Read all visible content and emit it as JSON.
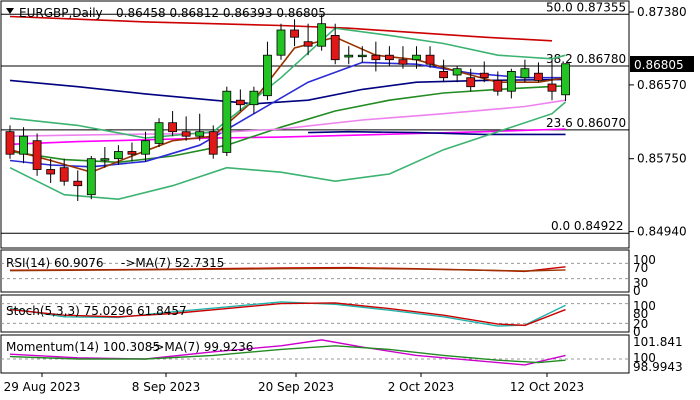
{
  "header": {
    "symbol": "EURGBP,Daily",
    "ohlc": "0.86458 0.86812 0.86393 0.86805"
  },
  "price_badge": "0.86805",
  "chart_data": {
    "type": "candlestick",
    "timeframe": "Daily",
    "x_tick_labels": [
      "29 Aug 2023",
      "8 Sep 2023",
      "20 Sep 2023",
      "2 Oct 2023",
      "12 Oct 2023"
    ],
    "main": {
      "ylim": [
        0.8478,
        0.8748
      ],
      "y_ticks": [
        "0.87380",
        "0.86570",
        "0.85750",
        "0.84940"
      ],
      "fib_levels": [
        {
          "label": "50.0 0.87355",
          "value": 0.87355
        },
        {
          "label": "38.2 0.86780",
          "value": 0.8678
        },
        {
          "label": "23.6 0.86070",
          "value": 0.8607
        },
        {
          "label": "0.0 0.84922",
          "value": 0.84922
        }
      ],
      "candles": [
        {
          "o": 0.8605,
          "h": 0.8612,
          "l": 0.8575,
          "c": 0.858
        },
        {
          "o": 0.858,
          "h": 0.861,
          "l": 0.857,
          "c": 0.86
        },
        {
          "o": 0.8595,
          "h": 0.8603,
          "l": 0.8556,
          "c": 0.8563
        },
        {
          "o": 0.8563,
          "h": 0.8575,
          "l": 0.8548,
          "c": 0.8558
        },
        {
          "o": 0.8565,
          "h": 0.8575,
          "l": 0.8545,
          "c": 0.855
        },
        {
          "o": 0.855,
          "h": 0.8562,
          "l": 0.8528,
          "c": 0.8545
        },
        {
          "o": 0.8535,
          "h": 0.8578,
          "l": 0.853,
          "c": 0.8575
        },
        {
          "o": 0.8575,
          "h": 0.8588,
          "l": 0.8565,
          "c": 0.8575
        },
        {
          "o": 0.8575,
          "h": 0.859,
          "l": 0.8568,
          "c": 0.8583
        },
        {
          "o": 0.8583,
          "h": 0.8593,
          "l": 0.8572,
          "c": 0.858
        },
        {
          "o": 0.858,
          "h": 0.8605,
          "l": 0.8572,
          "c": 0.8595
        },
        {
          "o": 0.8592,
          "h": 0.862,
          "l": 0.8588,
          "c": 0.8615
        },
        {
          "o": 0.8615,
          "h": 0.8628,
          "l": 0.86,
          "c": 0.8605
        },
        {
          "o": 0.8605,
          "h": 0.8622,
          "l": 0.8595,
          "c": 0.86
        },
        {
          "o": 0.86,
          "h": 0.8625,
          "l": 0.8595,
          "c": 0.8605
        },
        {
          "o": 0.8605,
          "h": 0.8612,
          "l": 0.8575,
          "c": 0.858
        },
        {
          "o": 0.8582,
          "h": 0.8655,
          "l": 0.8578,
          "c": 0.865
        },
        {
          "o": 0.864,
          "h": 0.8652,
          "l": 0.8628,
          "c": 0.8635
        },
        {
          "o": 0.8635,
          "h": 0.8655,
          "l": 0.8625,
          "c": 0.865
        },
        {
          "o": 0.8645,
          "h": 0.8705,
          "l": 0.864,
          "c": 0.869
        },
        {
          "o": 0.869,
          "h": 0.8725,
          "l": 0.8685,
          "c": 0.8718
        },
        {
          "o": 0.8718,
          "h": 0.873,
          "l": 0.87,
          "c": 0.871
        },
        {
          "o": 0.8705,
          "h": 0.8725,
          "l": 0.869,
          "c": 0.87
        },
        {
          "o": 0.87,
          "h": 0.8735,
          "l": 0.8695,
          "c": 0.8725
        },
        {
          "o": 0.8712,
          "h": 0.8725,
          "l": 0.868,
          "c": 0.8685
        },
        {
          "o": 0.8688,
          "h": 0.87,
          "l": 0.868,
          "c": 0.869
        },
        {
          "o": 0.869,
          "h": 0.87,
          "l": 0.8682,
          "c": 0.869
        },
        {
          "o": 0.869,
          "h": 0.8705,
          "l": 0.8672,
          "c": 0.8685
        },
        {
          "o": 0.869,
          "h": 0.87,
          "l": 0.8678,
          "c": 0.8685
        },
        {
          "o": 0.8685,
          "h": 0.87,
          "l": 0.8675,
          "c": 0.868
        },
        {
          "o": 0.8685,
          "h": 0.87,
          "l": 0.8675,
          "c": 0.869
        },
        {
          "o": 0.869,
          "h": 0.87,
          "l": 0.8676,
          "c": 0.868
        },
        {
          "o": 0.8672,
          "h": 0.8685,
          "l": 0.866,
          "c": 0.8665
        },
        {
          "o": 0.8668,
          "h": 0.8678,
          "l": 0.866,
          "c": 0.8675
        },
        {
          "o": 0.8665,
          "h": 0.8675,
          "l": 0.865,
          "c": 0.8655
        },
        {
          "o": 0.867,
          "h": 0.8683,
          "l": 0.866,
          "c": 0.8665
        },
        {
          "o": 0.8662,
          "h": 0.8672,
          "l": 0.8645,
          "c": 0.865
        },
        {
          "o": 0.865,
          "h": 0.8675,
          "l": 0.8642,
          "c": 0.8672
        },
        {
          "o": 0.8665,
          "h": 0.8685,
          "l": 0.866,
          "c": 0.8675
        },
        {
          "o": 0.867,
          "h": 0.8682,
          "l": 0.866,
          "c": 0.8662
        },
        {
          "o": 0.8658,
          "h": 0.8685,
          "l": 0.864,
          "c": 0.865
        },
        {
          "o": 0.8646,
          "h": 0.8681,
          "l": 0.8639,
          "c": 0.86805
        }
      ],
      "lines": [
        {
          "color": "#cc0000",
          "points": [
            [
              0,
              0.8733
            ],
            [
              5,
              0.873
            ],
            [
              10,
              0.8727
            ],
            [
              15,
              0.8725
            ],
            [
              20,
              0.8723
            ],
            [
              25,
              0.872
            ],
            [
              30,
              0.8715
            ],
            [
              35,
              0.871
            ],
            [
              40,
              0.8706
            ]
          ]
        },
        {
          "color": "#000080",
          "points": [
            [
              0,
              0.8662
            ],
            [
              5,
              0.8655
            ],
            [
              10,
              0.8647
            ],
            [
              15,
              0.864
            ],
            [
              18,
              0.8636
            ],
            [
              22,
              0.864
            ],
            [
              26,
              0.8652
            ],
            [
              30,
              0.866
            ],
            [
              35,
              0.8662
            ],
            [
              41,
              0.8663
            ]
          ]
        },
        {
          "color": "#ff00ff",
          "points": [
            [
              0,
              0.8591
            ],
            [
              5,
              0.8594
            ],
            [
              10,
              0.8596
            ],
            [
              15,
              0.8598
            ],
            [
              20,
              0.8599
            ],
            [
              25,
              0.8601
            ],
            [
              30,
              0.8603
            ],
            [
              35,
              0.8605
            ],
            [
              41,
              0.8608
            ]
          ]
        },
        {
          "color": "#000080",
          "points": [
            [
              22,
              0.8604
            ],
            [
              25,
              0.8605
            ],
            [
              30,
              0.8604
            ],
            [
              35,
              0.8602
            ],
            [
              41,
              0.8602
            ]
          ]
        },
        {
          "color": "#228B22",
          "points": [
            [
              0,
              0.8583
            ],
            [
              4,
              0.8574
            ],
            [
              8,
              0.8571
            ],
            [
              12,
              0.8578
            ],
            [
              16,
              0.859
            ],
            [
              20,
              0.861
            ],
            [
              24,
              0.8628
            ],
            [
              28,
              0.864
            ],
            [
              32,
              0.8648
            ],
            [
              36,
              0.8652
            ],
            [
              41,
              0.8656
            ]
          ]
        },
        {
          "color": "#2b2bd8",
          "points": [
            [
              0,
              0.8573
            ],
            [
              3,
              0.8568
            ],
            [
              6,
              0.8566
            ],
            [
              10,
              0.8572
            ],
            [
              14,
              0.859
            ],
            [
              18,
              0.8625
            ],
            [
              22,
              0.866
            ],
            [
              26,
              0.8682
            ],
            [
              30,
              0.868
            ],
            [
              34,
              0.867
            ],
            [
              38,
              0.8665
            ],
            [
              41,
              0.8665
            ]
          ]
        },
        {
          "color": "#ee82ee",
          "points": [
            [
              0,
              0.86
            ],
            [
              8,
              0.8602
            ],
            [
              14,
              0.8603
            ],
            [
              20,
              0.8608
            ],
            [
              26,
              0.8618
            ],
            [
              32,
              0.8625
            ],
            [
              38,
              0.8633
            ],
            [
              41,
              0.864
            ]
          ]
        },
        {
          "color": "#993300",
          "points": [
            [
              0,
              0.8585
            ],
            [
              3,
              0.8573
            ],
            [
              6,
              0.856
            ],
            [
              9,
              0.8578
            ],
            [
              12,
              0.8595
            ],
            [
              15,
              0.86
            ],
            [
              18,
              0.864
            ],
            [
              21,
              0.8698
            ],
            [
              24,
              0.871
            ],
            [
              27,
              0.869
            ],
            [
              30,
              0.8685
            ],
            [
              33,
              0.8672
            ],
            [
              36,
              0.866
            ],
            [
              39,
              0.866
            ],
            [
              41,
              0.8665
            ]
          ]
        },
        {
          "color": "#3cb371",
          "points": [
            [
              0,
              0.862
            ],
            [
              5,
              0.8612
            ],
            [
              10,
              0.8598
            ],
            [
              15,
              0.8605
            ],
            [
              20,
              0.8665
            ],
            [
              24,
              0.872
            ],
            [
              28,
              0.8712
            ],
            [
              32,
              0.8703
            ],
            [
              36,
              0.869
            ],
            [
              40,
              0.8686
            ],
            [
              41,
              0.869
            ]
          ]
        },
        {
          "color": "#3cb371",
          "points": [
            [
              0,
              0.8565
            ],
            [
              4,
              0.8535
            ],
            [
              8,
              0.853
            ],
            [
              12,
              0.8545
            ],
            [
              16,
              0.8565
            ],
            [
              20,
              0.856
            ],
            [
              24,
              0.855
            ],
            [
              28,
              0.8558
            ],
            [
              32,
              0.8585
            ],
            [
              36,
              0.8605
            ],
            [
              40,
              0.8625
            ],
            [
              41,
              0.8638
            ]
          ]
        }
      ]
    },
    "rsi": {
      "label": "RSI(14) 60.9076",
      "ma_label": "->MA(7) 52.7315",
      "y_ticks": [
        "100",
        "70",
        "30",
        "0"
      ],
      "levels": [
        70,
        30
      ],
      "ylim": [
        0,
        100
      ],
      "series": [
        {
          "color": "#cc0000",
          "points": [
            [
              0,
              52
            ],
            [
              10,
              54
            ],
            [
              20,
              58
            ],
            [
              25,
              59
            ],
            [
              30,
              56
            ],
            [
              35,
              52
            ],
            [
              38,
              49
            ],
            [
              41,
              60.9
            ]
          ]
        },
        {
          "color": "#993300",
          "points": [
            [
              0,
              51
            ],
            [
              10,
              53
            ],
            [
              20,
              56
            ],
            [
              25,
              57
            ],
            [
              30,
              55
            ],
            [
              35,
              52
            ],
            [
              38,
              50
            ],
            [
              41,
              52.7
            ]
          ]
        }
      ]
    },
    "stoch": {
      "label": "Stoch(5,3,3) 75.0296 61.8457",
      "y_ticks": [
        "100",
        "80",
        "20",
        "0"
      ],
      "levels": [
        80,
        20
      ],
      "ylim": [
        0,
        100
      ],
      "series": [
        {
          "color": "#20b2aa",
          "points": [
            [
              0,
              65
            ],
            [
              4,
              40
            ],
            [
              8,
              38
            ],
            [
              12,
              55
            ],
            [
              16,
              70
            ],
            [
              20,
              85
            ],
            [
              24,
              78
            ],
            [
              28,
              60
            ],
            [
              32,
              40
            ],
            [
              36,
              12
            ],
            [
              38,
              15
            ],
            [
              41,
              75
            ]
          ]
        },
        {
          "color": "#cc0000",
          "points": [
            [
              0,
              62
            ],
            [
              4,
              45
            ],
            [
              8,
              40
            ],
            [
              12,
              50
            ],
            [
              16,
              65
            ],
            [
              20,
              80
            ],
            [
              24,
              82
            ],
            [
              28,
              65
            ],
            [
              32,
              45
            ],
            [
              36,
              18
            ],
            [
              38,
              14
            ],
            [
              41,
              62
            ]
          ]
        }
      ]
    },
    "momentum": {
      "label": "Momentum(14) 100.3085",
      "ma_label": "->MA(7) 99.9236",
      "y_ticks": [
        "101.841",
        "100",
        "98.9943"
      ],
      "levels": [
        100
      ],
      "ylim": [
        98.9943,
        101.841
      ],
      "series": [
        {
          "color": "#cc00cc",
          "points": [
            [
              0,
              100.4
            ],
            [
              5,
              100.1
            ],
            [
              10,
              100.0
            ],
            [
              15,
              100.6
            ],
            [
              20,
              101.1
            ],
            [
              23,
              101.6
            ],
            [
              26,
              101.0
            ],
            [
              30,
              100.3
            ],
            [
              34,
              99.9
            ],
            [
              38,
              99.5
            ],
            [
              41,
              100.3
            ]
          ]
        },
        {
          "color": "#228B22",
          "points": [
            [
              0,
              100.2
            ],
            [
              5,
              100.0
            ],
            [
              10,
              100.0
            ],
            [
              15,
              100.3
            ],
            [
              20,
              100.8
            ],
            [
              24,
              101.1
            ],
            [
              28,
              100.8
            ],
            [
              32,
              100.3
            ],
            [
              36,
              99.9
            ],
            [
              39,
              99.7
            ],
            [
              41,
              99.9
            ]
          ]
        }
      ]
    }
  }
}
